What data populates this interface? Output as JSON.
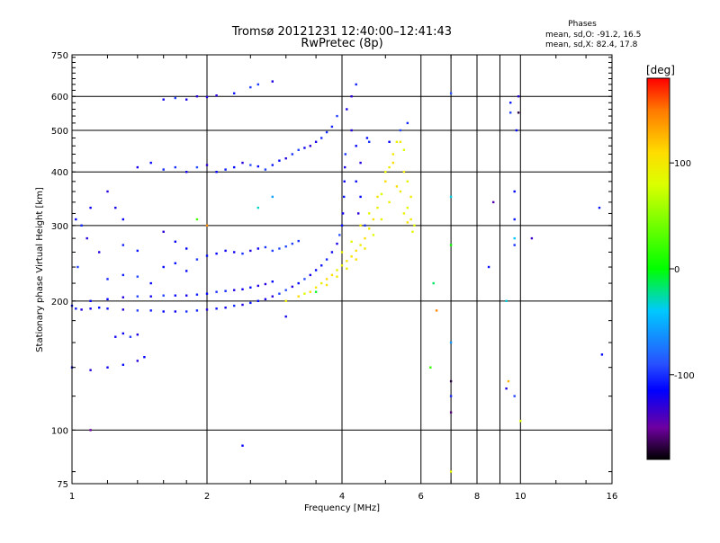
{
  "chart_data": {
    "type": "scatter",
    "title": "Tromsø 20121231 12:40:00–12:41:43",
    "subtitle": "RwPretec (8p)",
    "xlabel": "Frequency [MHz]",
    "ylabel": "Stationary phase Virtual Height [km]",
    "x_scale": "log2",
    "y_scale": "log",
    "xlim": [
      1,
      16
    ],
    "ylim": [
      75,
      750
    ],
    "x_ticks": [
      1,
      2,
      4,
      6,
      8,
      10,
      16
    ],
    "y_ticks": [
      75,
      100,
      200,
      300,
      400,
      500,
      600,
      750
    ],
    "x_grid": [
      1,
      2,
      4,
      6,
      8,
      10,
      16
    ],
    "y_grid": [
      100,
      200,
      300,
      400,
      500,
      600
    ],
    "x_minor_lines": [
      7,
      9
    ],
    "grid": true,
    "stats": {
      "heading": "Phases",
      "o_mode": "mean, sd,O: -91.2, 16.5",
      "x_mode": "mean, sd,X:  82.4, 17.8"
    },
    "colorbar": {
      "label": "[deg]",
      "range": [
        -180,
        180
      ],
      "ticks": [
        100,
        0,
        -100
      ],
      "colors": [
        "#000000",
        "#7000a0",
        "#0000ff",
        "#00e0ff",
        "#00ff00",
        "#ffff00",
        "#ff8000",
        "#ff0000"
      ]
    },
    "series": [
      {
        "name": "O-mode phase",
        "points": [
          [
            1.0,
            195
          ],
          [
            1.02,
            192
          ],
          [
            1.05,
            191
          ],
          [
            1.1,
            192
          ],
          [
            1.15,
            193
          ],
          [
            1.2,
            192
          ],
          [
            1.3,
            191
          ],
          [
            1.4,
            190
          ],
          [
            1.5,
            190
          ],
          [
            1.6,
            189
          ],
          [
            1.7,
            189
          ],
          [
            1.8,
            189
          ],
          [
            1.9,
            190
          ],
          [
            2.0,
            191
          ],
          [
            2.1,
            192
          ],
          [
            2.2,
            193
          ],
          [
            2.3,
            195
          ],
          [
            2.4,
            196
          ],
          [
            2.5,
            198
          ],
          [
            2.6,
            200
          ],
          [
            2.7,
            202
          ],
          [
            2.8,
            205
          ],
          [
            2.9,
            208
          ],
          [
            3.0,
            212
          ],
          [
            3.1,
            216
          ],
          [
            3.2,
            220
          ],
          [
            3.3,
            225
          ],
          [
            3.4,
            230
          ],
          [
            3.5,
            236
          ],
          [
            3.6,
            242
          ],
          [
            3.7,
            250
          ],
          [
            3.8,
            260
          ],
          [
            3.9,
            272
          ],
          [
            3.95,
            285
          ],
          [
            4.0,
            300
          ],
          [
            4.02,
            320
          ],
          [
            4.04,
            350
          ],
          [
            4.05,
            380
          ],
          [
            4.06,
            410
          ],
          [
            4.07,
            440
          ],
          [
            1.1,
            200
          ],
          [
            1.2,
            202
          ],
          [
            1.3,
            204
          ],
          [
            1.4,
            205
          ],
          [
            1.5,
            205
          ],
          [
            1.6,
            206
          ],
          [
            1.7,
            206
          ],
          [
            1.8,
            206
          ],
          [
            1.9,
            207
          ],
          [
            2.0,
            208
          ],
          [
            2.1,
            210
          ],
          [
            2.2,
            211
          ],
          [
            2.3,
            212
          ],
          [
            2.4,
            213
          ],
          [
            2.5,
            215
          ],
          [
            2.6,
            217
          ],
          [
            2.7,
            219
          ],
          [
            2.8,
            222
          ],
          [
            1.2,
            225
          ],
          [
            1.3,
            230
          ],
          [
            1.4,
            228
          ],
          [
            1.5,
            220
          ],
          [
            1.6,
            240
          ],
          [
            1.7,
            245
          ],
          [
            1.8,
            235
          ],
          [
            1.9,
            250
          ],
          [
            2.0,
            255
          ],
          [
            2.1,
            258
          ],
          [
            2.2,
            262
          ],
          [
            2.3,
            260
          ],
          [
            2.4,
            258
          ],
          [
            2.5,
            262
          ],
          [
            2.6,
            265
          ],
          [
            2.7,
            267
          ],
          [
            2.8,
            262
          ],
          [
            2.9,
            265
          ],
          [
            3.0,
            268
          ],
          [
            3.1,
            272
          ],
          [
            3.2,
            276
          ],
          [
            1.3,
            270
          ],
          [
            1.4,
            262
          ],
          [
            1.6,
            290
          ],
          [
            1.7,
            275
          ],
          [
            1.8,
            265
          ],
          [
            1.4,
            410
          ],
          [
            1.5,
            420
          ],
          [
            1.6,
            405
          ],
          [
            1.7,
            410
          ],
          [
            1.8,
            400
          ],
          [
            1.9,
            410
          ],
          [
            2.0,
            415
          ],
          [
            2.1,
            400
          ],
          [
            2.2,
            405
          ],
          [
            2.3,
            410
          ],
          [
            2.4,
            420
          ],
          [
            2.5,
            415
          ],
          [
            2.6,
            412
          ],
          [
            2.7,
            405
          ],
          [
            2.8,
            415
          ],
          [
            2.9,
            425
          ],
          [
            3.0,
            430
          ],
          [
            3.1,
            440
          ],
          [
            3.2,
            450
          ],
          [
            3.3,
            455
          ],
          [
            3.4,
            460
          ],
          [
            3.5,
            470
          ],
          [
            3.6,
            480
          ],
          [
            3.7,
            495
          ],
          [
            3.8,
            510
          ],
          [
            3.9,
            540
          ],
          [
            1.6,
            590
          ],
          [
            1.7,
            595
          ],
          [
            1.8,
            590
          ],
          [
            1.9,
            600
          ],
          [
            2.0,
            598
          ],
          [
            2.1,
            603
          ],
          [
            2.3,
            610
          ],
          [
            2.5,
            630
          ],
          [
            2.6,
            640
          ],
          [
            2.8,
            650
          ],
          [
            1.0,
            140
          ],
          [
            1.1,
            138
          ],
          [
            1.2,
            140
          ],
          [
            1.3,
            142
          ],
          [
            1.4,
            145
          ],
          [
            1.45,
            148
          ],
          [
            1.25,
            165
          ],
          [
            1.3,
            168
          ],
          [
            1.35,
            165
          ],
          [
            1.4,
            167
          ],
          [
            4.1,
            560
          ],
          [
            4.2,
            600
          ],
          [
            4.3,
            640
          ],
          [
            4.2,
            500
          ],
          [
            4.3,
            460
          ],
          [
            4.4,
            420
          ],
          [
            4.3,
            380
          ],
          [
            4.4,
            350
          ],
          [
            4.35,
            320
          ],
          [
            4.5,
            300
          ],
          [
            4.55,
            480
          ],
          [
            4.6,
            470
          ],
          [
            5.1,
            470
          ],
          [
            5.4,
            500
          ],
          [
            5.6,
            520
          ],
          [
            1.05,
            300
          ],
          [
            1.1,
            330
          ],
          [
            1.02,
            310
          ],
          [
            1.15,
            260
          ],
          [
            1.03,
            240
          ],
          [
            1.08,
            280
          ],
          [
            1.2,
            360
          ],
          [
            1.25,
            330
          ],
          [
            1.3,
            310
          ],
          [
            9.9,
            600
          ],
          [
            9.5,
            580
          ],
          [
            9.8,
            500
          ],
          [
            9.7,
            360
          ],
          [
            9.7,
            310
          ],
          [
            9.5,
            550
          ],
          [
            15.0,
            330
          ],
          [
            15.2,
            150
          ],
          [
            9.3,
            125
          ],
          [
            9.7,
            120
          ],
          [
            7.0,
            120
          ],
          [
            8.5,
            240
          ]
        ]
      },
      {
        "name": "X-mode phase",
        "points": [
          [
            3.4,
            210
          ],
          [
            3.5,
            215
          ],
          [
            3.6,
            220
          ],
          [
            3.7,
            225
          ],
          [
            3.8,
            230
          ],
          [
            3.9,
            236
          ],
          [
            4.0,
            242
          ],
          [
            4.1,
            248
          ],
          [
            4.2,
            254
          ],
          [
            4.3,
            262
          ],
          [
            4.4,
            270
          ],
          [
            4.5,
            280
          ],
          [
            4.6,
            295
          ],
          [
            4.7,
            310
          ],
          [
            4.8,
            330
          ],
          [
            4.9,
            355
          ],
          [
            5.0,
            380
          ],
          [
            5.1,
            410
          ],
          [
            5.2,
            440
          ],
          [
            5.3,
            470
          ],
          [
            5.4,
            470
          ],
          [
            3.7,
            218
          ],
          [
            3.9,
            228
          ],
          [
            4.1,
            238
          ],
          [
            4.3,
            250
          ],
          [
            4.5,
            265
          ],
          [
            4.7,
            285
          ],
          [
            4.9,
            310
          ],
          [
            5.1,
            340
          ],
          [
            5.3,
            370
          ],
          [
            5.5,
            400
          ],
          [
            5.6,
            330
          ],
          [
            5.7,
            310
          ],
          [
            5.8,
            300
          ],
          [
            5.75,
            290
          ],
          [
            5.7,
            350
          ],
          [
            5.6,
            380
          ],
          [
            5.5,
            450
          ],
          [
            3.2,
            205
          ],
          [
            3.0,
            200
          ],
          [
            3.3,
            208
          ],
          [
            4.0,
            260
          ],
          [
            4.2,
            275
          ],
          [
            4.4,
            300
          ],
          [
            4.6,
            320
          ],
          [
            4.8,
            350
          ],
          [
            5.0,
            400
          ],
          [
            5.2,
            420
          ],
          [
            5.4,
            360
          ],
          [
            5.5,
            320
          ],
          [
            5.6,
            305
          ]
        ]
      },
      {
        "name": "scattered echoes (other phases)",
        "points": [
          [
            2.4,
            92
          ],
          [
            2.8,
            350
          ],
          [
            2.6,
            330
          ],
          [
            2.0,
            300
          ],
          [
            1.9,
            310
          ],
          [
            1.1,
            100
          ],
          [
            3.0,
            184
          ],
          [
            3.5,
            210
          ],
          [
            7.0,
            610
          ],
          [
            7.0,
            350
          ],
          [
            7.0,
            270
          ],
          [
            7.0,
            160
          ],
          [
            7.0,
            130
          ],
          [
            7.0,
            110
          ],
          [
            7.0,
            80
          ],
          [
            6.4,
            220
          ],
          [
            6.3,
            140
          ],
          [
            6.5,
            190
          ],
          [
            8.7,
            340
          ],
          [
            9.3,
            200
          ],
          [
            9.7,
            270
          ],
          [
            9.7,
            280
          ],
          [
            9.9,
            550
          ],
          [
            10.6,
            280
          ],
          [
            10.0,
            105
          ],
          [
            9.4,
            130
          ]
        ]
      }
    ]
  }
}
